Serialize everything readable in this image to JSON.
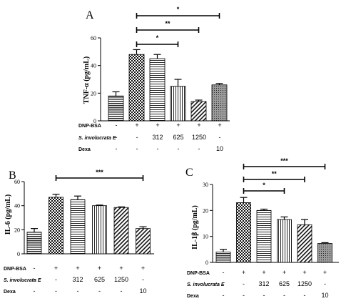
{
  "chart_data": [
    {
      "panel_letter": "A",
      "type": "bar",
      "ylabel": "TNF-α (pg/mL)",
      "ylim": [
        0,
        60
      ],
      "yticks": [
        0,
        20,
        40,
        60
      ],
      "tick_labels": [
        "0",
        "20",
        "40",
        "60"
      ],
      "categories": [
        "1",
        "2",
        "3",
        "4",
        "5",
        "6"
      ],
      "values": [
        18,
        48,
        45,
        25,
        14,
        26
      ],
      "errors": [
        3,
        3.5,
        3,
        5,
        1,
        1
      ],
      "patterns": [
        "hstripe",
        "check",
        "hlines",
        "vlines",
        "diag",
        "dots"
      ],
      "treatment_rows": [
        {
          "label": "DNP-BSA",
          "italic": false,
          "values": [
            "-",
            "+",
            "+",
            "+",
            "+",
            "+"
          ]
        },
        {
          "label": "S. involucrata E",
          "italic": true,
          "values": [
            "-",
            "-",
            "312",
            "625",
            "1250",
            "-"
          ]
        },
        {
          "label": "Dexa",
          "italic": false,
          "values": [
            "-",
            "-",
            "-",
            "-",
            "-",
            "10"
          ]
        }
      ],
      "significance": [
        {
          "from": 1,
          "to": 5,
          "label": "*"
        },
        {
          "from": 1,
          "to": 4,
          "label": "**"
        },
        {
          "from": 1,
          "to": 3,
          "label": "*"
        }
      ]
    },
    {
      "panel_letter": "B",
      "type": "bar",
      "ylabel": "IL-6 (pg/mL)",
      "ylim": [
        0,
        60
      ],
      "yticks": [
        0,
        20,
        40,
        60
      ],
      "tick_labels": [
        "0",
        "20",
        "40",
        "60"
      ],
      "categories": [
        "1",
        "2",
        "3",
        "4",
        "5",
        "6"
      ],
      "values": [
        18,
        47,
        45,
        40,
        38.5,
        21
      ],
      "errors": [
        3,
        2.5,
        3,
        0.5,
        0.5,
        1.5
      ],
      "patterns": [
        "hstripe",
        "check",
        "hlines",
        "vlines",
        "diag",
        "diag"
      ],
      "treatment_rows": [
        {
          "label": "DNP-BSA",
          "italic": false,
          "values": [
            "-",
            "+",
            "+",
            "+",
            "+",
            "+"
          ]
        },
        {
          "label": "S. involucrata E",
          "italic": true,
          "values": [
            "-",
            "-",
            "312",
            "625",
            "1250",
            "-"
          ]
        },
        {
          "label": "Dexa",
          "italic": false,
          "values": [
            "-",
            "-",
            "-",
            "-",
            "-",
            "10"
          ]
        }
      ],
      "significance": [
        {
          "from": 1,
          "to": 5,
          "label": "***"
        }
      ]
    },
    {
      "panel_letter": "C",
      "type": "bar",
      "ylabel": "IL-1β (pg/mL)",
      "ylim": [
        0,
        30
      ],
      "yticks": [
        0,
        10,
        20,
        30
      ],
      "tick_labels": [
        "0",
        "10",
        "20",
        "30"
      ],
      "categories": [
        "1",
        "2",
        "3",
        "4",
        "5",
        "6"
      ],
      "values": [
        4,
        23,
        20,
        16.5,
        14.5,
        7.3
      ],
      "errors": [
        1,
        2,
        0.5,
        1,
        2,
        0.3
      ],
      "patterns": [
        "hstripe",
        "check",
        "hlines",
        "vlines",
        "diag",
        "dots"
      ],
      "treatment_rows": [
        {
          "label": "DNP-BSA",
          "italic": false,
          "values": [
            "-",
            "+",
            "+",
            "+",
            "+",
            "+"
          ]
        },
        {
          "label": "S. involucrata E",
          "italic": true,
          "values": [
            "-",
            "-",
            "312",
            "625",
            "1250",
            "-"
          ]
        },
        {
          "label": "Dexa",
          "italic": false,
          "values": [
            "-",
            "-",
            "-",
            "-",
            "-",
            "10"
          ]
        }
      ],
      "significance": [
        {
          "from": 1,
          "to": 5,
          "label": "***"
        },
        {
          "from": 1,
          "to": 4,
          "label": "**"
        },
        {
          "from": 1,
          "to": 3,
          "label": "*"
        }
      ]
    }
  ]
}
